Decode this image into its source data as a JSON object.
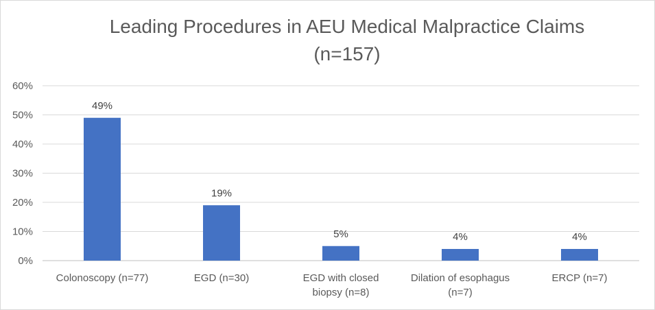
{
  "chart_data": {
    "type": "bar",
    "title": "Leading Procedures in AEU Medical Malpractice Claims",
    "title_line2": "(n=157)",
    "xlabel": "",
    "ylabel": "",
    "categories": [
      [
        "Colonoscopy (n=77)"
      ],
      [
        "EGD (n=30)"
      ],
      [
        "EGD with closed",
        "biopsy (n=8)"
      ],
      [
        "Dilation of esophagus",
        "(n=7)"
      ],
      [
        "ERCP (n=7)"
      ]
    ],
    "values": [
      49,
      19,
      5,
      4,
      4
    ],
    "data_labels": [
      "49%",
      "19%",
      "5%",
      "4%",
      "4%"
    ],
    "ylim": [
      0,
      60
    ],
    "yticks": [
      0,
      10,
      20,
      30,
      40,
      50,
      60
    ],
    "ytick_labels": [
      "0%",
      "10%",
      "20%",
      "30%",
      "40%",
      "50%",
      "60%"
    ],
    "grid": true,
    "legend": "none",
    "colors": {
      "bar": "#4472c4",
      "gridline": "#d9d9d9",
      "axis_text": "#595959",
      "title": "#595959"
    }
  }
}
